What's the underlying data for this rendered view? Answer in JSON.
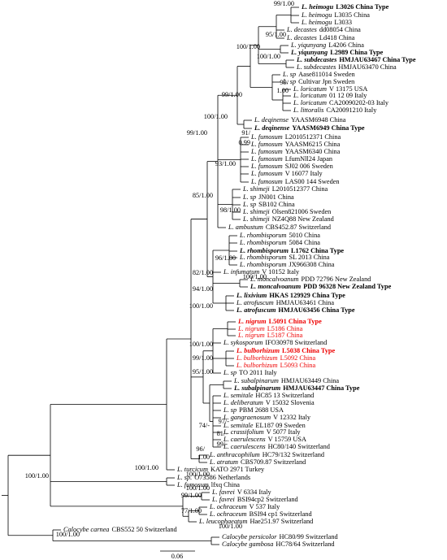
{
  "leaves": [
    {
      "name": "L. heimogu",
      "label": "L3026 China Type"
    },
    {
      "name": "L. heimogu",
      "label": "L3035 China"
    },
    {
      "name": "L. heimogu",
      "label": "L3033"
    },
    {
      "name": "L. decastes",
      "label": "dd08054 China"
    },
    {
      "name": "L. decastes",
      "label": "Ld418 China"
    },
    {
      "name": "L. yiqunyang",
      "label": "L4206 China"
    },
    {
      "name": "L. yiqunyang",
      "label": "L2989 China Type"
    },
    {
      "name": "L. subdecastes",
      "label": "HMJAU63467 China Type"
    },
    {
      "name": "L. subdecastes",
      "label": "HMJAU63470 China"
    },
    {
      "name": "L. sp",
      "label": "Aase811014 Sweden"
    },
    {
      "name": "L. sp",
      "label": "Cultivar Jpn Sweden"
    },
    {
      "name": "L. loricatum",
      "label": "V 13175 USA"
    },
    {
      "name": "L. loricatum",
      "label": "01 12 09 Italy"
    },
    {
      "name": "L. loricatum",
      "label": "CA20090202-03 Italy"
    },
    {
      "name": "L. littoralis",
      "label": "CA20091210 Italy"
    },
    {
      "name": "L. deqinense",
      "label": "YAASM6948 China"
    },
    {
      "name": "L. deqinense",
      "label": "YAASM6949 China Type"
    },
    {
      "name": "L. fumosum",
      "label": "L2010512371 China"
    },
    {
      "name": "L. fumosum",
      "label": "YAASM6215 China"
    },
    {
      "name": "L. fumosum",
      "label": "YAASM6340 China"
    },
    {
      "name": "L. fumosum",
      "label": "LfumNll24 Japan"
    },
    {
      "name": "L. fumosum",
      "label": "SJ02 006 Sweden"
    },
    {
      "name": "L. fumosum",
      "label": "V 16077 Italy"
    },
    {
      "name": "L. fumosum",
      "label": "LAS00 144 Sweden"
    },
    {
      "name": "L. shimeji",
      "label": "L2010512377 China"
    },
    {
      "name": "L. sp",
      "label": "JN001 China"
    },
    {
      "name": "L. sp",
      "label": "SB102 China"
    },
    {
      "name": "L. shimeji",
      "label": "Olsen821006 Sweden"
    },
    {
      "name": "L. shimeji",
      "label": "NZ4Q88 New Zealand"
    },
    {
      "name": "L. ambustum",
      "label": "CBS452.87 Switzerland"
    },
    {
      "name": "L. rhombisporum",
      "label": "5010 China"
    },
    {
      "name": "L. rhombisporum",
      "label": "5084 China"
    },
    {
      "name": "L. rhombisporum",
      "label": "L1762 China Type"
    },
    {
      "name": "L. rhombisporum",
      "label": "SL 2013 China"
    },
    {
      "name": "L. rhombisporum",
      "label": "JX966308 China"
    },
    {
      "name": "L. infumatum",
      "label": "V 10152 Italy"
    },
    {
      "name": "L. moncalvoanum",
      "label": "PDD 72796 New Zealand"
    },
    {
      "name": "L. moncalvoanum",
      "label": "PDD 96328 New Zealand Type"
    },
    {
      "name": "L. lixivium",
      "label": "HKAS 129929 China Type"
    },
    {
      "name": "L. atrofuscum",
      "label": "HMJAU63461 China"
    },
    {
      "name": "L. atrofuscum",
      "label": "HMJAU63456 China Type"
    },
    {
      "name": "L. nigrum",
      "label": "L5091 China Type"
    },
    {
      "name": "L. nigrum",
      "label": "L5186 China"
    },
    {
      "name": "L. nigrum",
      "label": "L5187 China"
    },
    {
      "name": "L. sykosporum",
      "label": "IFO30978 Switzerland"
    },
    {
      "name": "L. bulborhizum",
      "label": "L5038 China Type"
    },
    {
      "name": "L. bulborhizum",
      "label": "L5092 China"
    },
    {
      "name": "L. bulborhizum",
      "label": "L5093 China"
    },
    {
      "name": "L. sp",
      "label": "TO 2011 Italy"
    },
    {
      "name": "L. subalpinarum",
      "label": "HMJAU63449 China"
    },
    {
      "name": "L. subalpinarum",
      "label": "HMJAU63447 China Type"
    },
    {
      "name": "L. semitale",
      "label": "HC85 13 Switzerland"
    },
    {
      "name": "L. deliberatum",
      "label": "V 15032 Slovenia"
    },
    {
      "name": "L. sp",
      "label": "PBM 2688 USA"
    },
    {
      "name": "L. gangraenosum",
      "label": "V 12332 Italy"
    },
    {
      "name": "L. semitale",
      "label": "EL187 09 Sweden"
    },
    {
      "name": "L. crassifolium",
      "label": "V 5077 Italy"
    },
    {
      "name": "L. caerulescens",
      "label": "V 15759 USA"
    },
    {
      "name": "L. caerulescens",
      "label": "HC80/140 Switzerland"
    },
    {
      "name": "L. anthracophilum",
      "label": "HC79/132 Switzerland"
    },
    {
      "name": "L. atratum",
      "label": "CBS709.87 Switzerland"
    },
    {
      "name": "L. turcicum",
      "label": "KATO 2971 Turkey"
    },
    {
      "name": "L. sp.",
      "label": "O73586 Netherlands"
    },
    {
      "name": "L. fumosum",
      "label": "lfxq China"
    },
    {
      "name": "L. favrei",
      "label": "V 6334 Italy"
    },
    {
      "name": "L. favrei",
      "label": "BSI94cp2 Switzerland"
    },
    {
      "name": "L. ochraceum",
      "label": "V 537 Italy"
    },
    {
      "name": "L. ochraceum",
      "label": "BSI94 cp1 Switzerland"
    },
    {
      "name": "L. leucophaeatum",
      "label": "Hae251.97 Switzerland"
    },
    {
      "name": "Calocybe carnea",
      "label": "CBS552 50 Switzerland"
    },
    {
      "name": "Calocybe persicolor",
      "label": "HC80/99 Switzerland"
    },
    {
      "name": "Calocybe gambosa",
      "label": "HC78/64 Switzerland"
    }
  ],
  "supports": [
    "99/1.00",
    "95/1.00",
    "100/1.00",
    "100/1.00",
    "99/",
    "1.00",
    "99/1.00",
    "100/1.00",
    "91/",
    "0.99",
    "99/1.00",
    "93/1.00",
    "85/1.00",
    "98/1.00",
    "96/1.00",
    "82/1.00",
    "100/1.00",
    "94/1.00",
    "100/1.00",
    "100/1.00",
    "99/1.00",
    "95/1.00",
    "97/-",
    "74/-",
    "81/-",
    "99/-",
    "96/",
    "1.00",
    "100/1.00",
    "100/1.00",
    "100/1.00",
    "100/1.00",
    "99/1.00",
    "77/1.00",
    "100/1.00",
    "100/1.00"
  ],
  "scale_bar": "0.06"
}
